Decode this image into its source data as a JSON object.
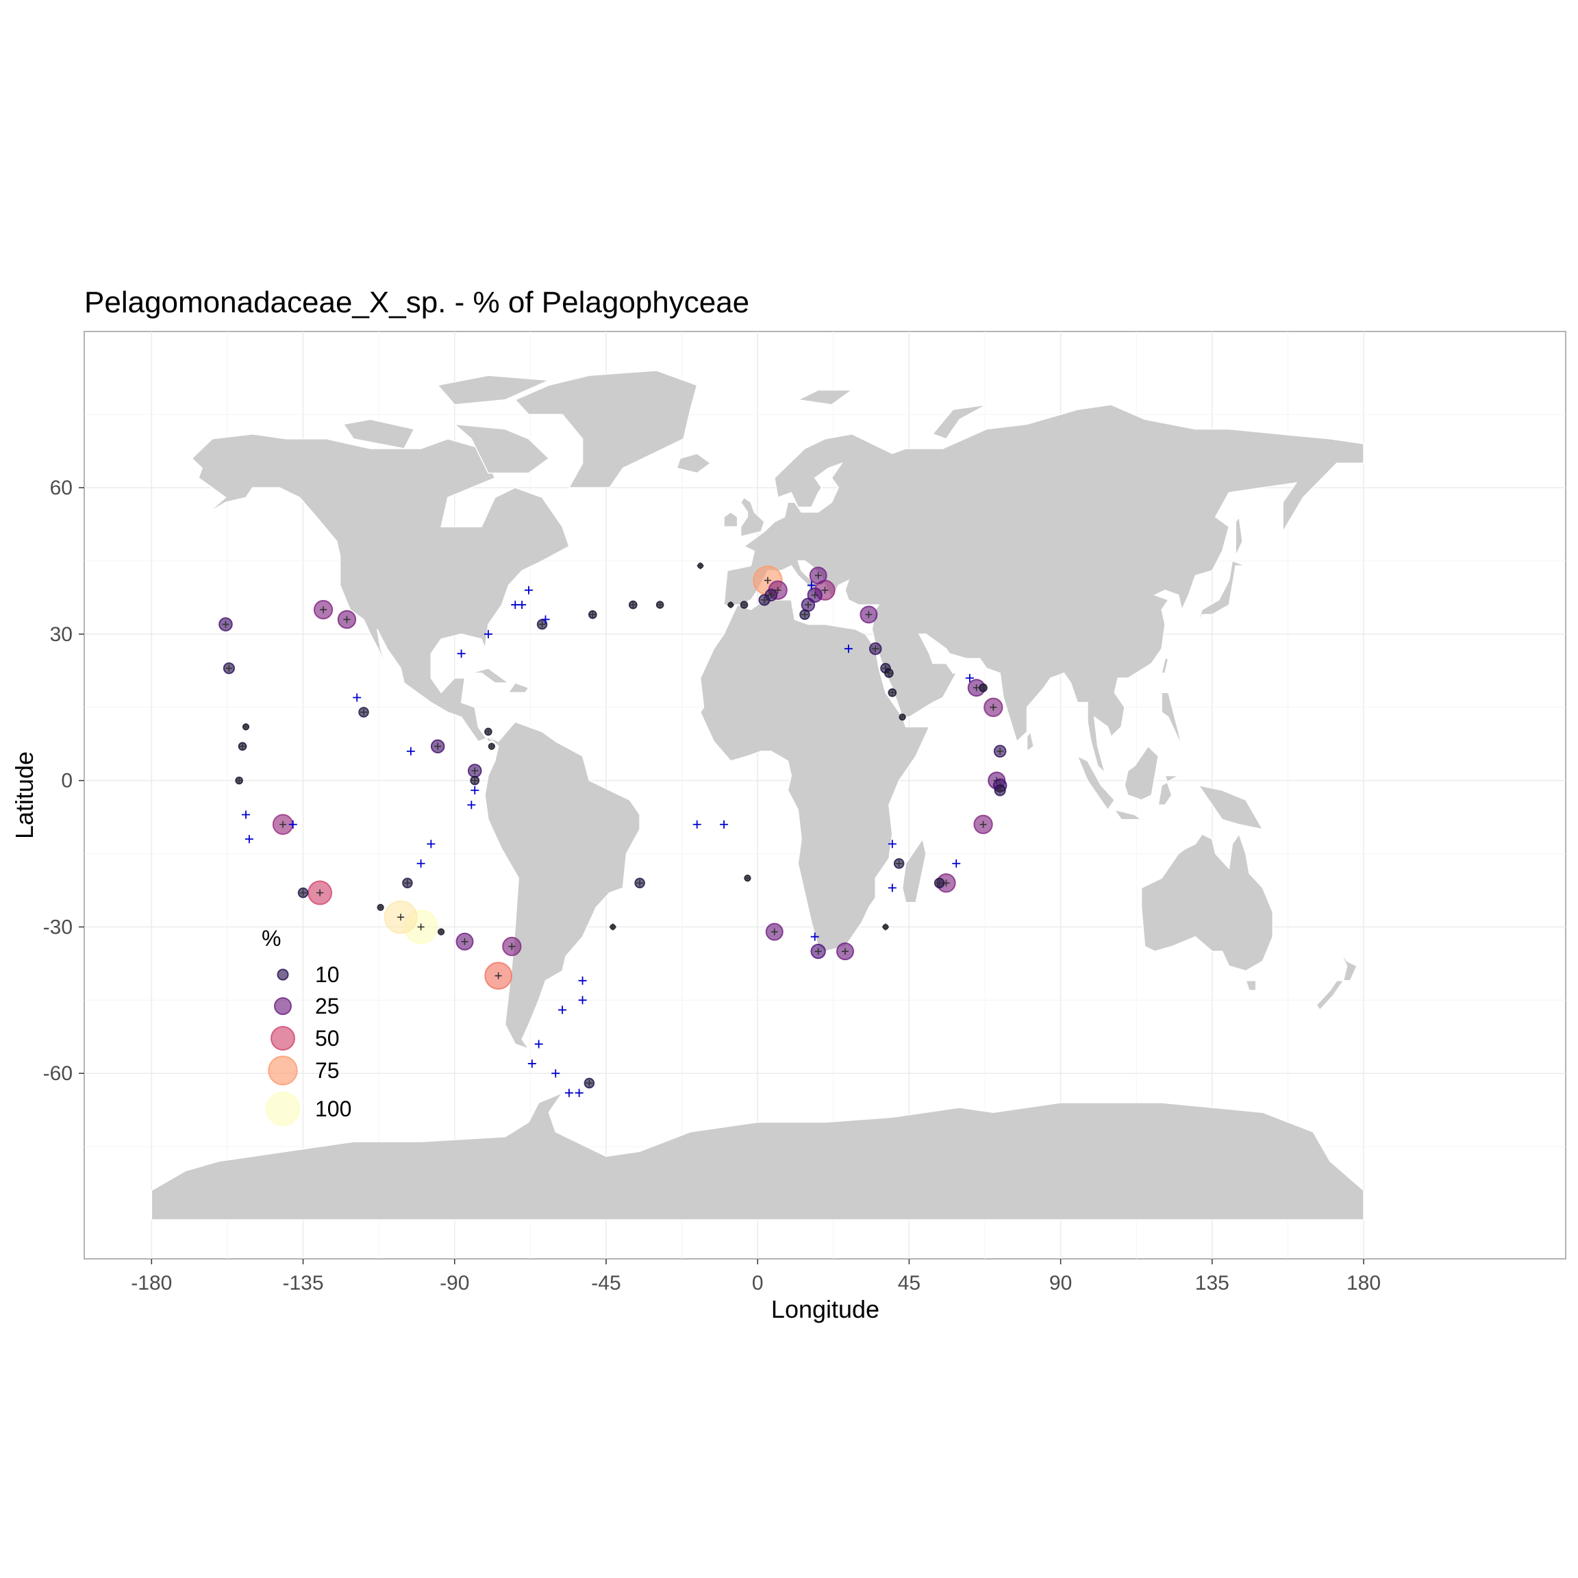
{
  "chart_data": {
    "type": "scatter",
    "title": "Pelagomonadaceae_X_sp. - % of Pelagophyceae",
    "xlabel": "Longitude",
    "ylabel": "Latitude",
    "xlim": [
      -200,
      240
    ],
    "ylim": [
      -98,
      92
    ],
    "x_ticks": [
      -180,
      -135,
      -90,
      -45,
      0,
      45,
      90,
      135,
      180
    ],
    "y_ticks": [
      60,
      30,
      0,
      -30,
      -60
    ],
    "x_tick_labels": [
      "-180",
      "-135",
      "-90",
      "-45",
      "0",
      "45",
      "90",
      "135",
      "180"
    ],
    "y_tick_labels": [
      "60",
      "30",
      "0",
      "-30",
      "-60"
    ],
    "grid": true,
    "size_scale_max": 100,
    "color_scale": "magma",
    "land_color": "#cccccc",
    "border_color": "#ffffff",
    "sample_marker_color": "#0000cc",
    "legend": {
      "title": "%",
      "placement": "bottom-left inside",
      "entries": [
        {
          "label": "10",
          "value": 10
        },
        {
          "label": "25",
          "value": 25
        },
        {
          "label": "50",
          "value": 50
        },
        {
          "label": "75",
          "value": 75
        },
        {
          "label": "100",
          "value": 100
        }
      ]
    },
    "points": [
      {
        "lon": 3,
        "lat": 41,
        "pct": 75
      },
      {
        "lon": 6,
        "lat": 39,
        "pct": 30
      },
      {
        "lon": 18,
        "lat": 42,
        "pct": 25
      },
      {
        "lon": 20,
        "lat": 39,
        "pct": 35
      },
      {
        "lon": 17,
        "lat": 38,
        "pct": 18
      },
      {
        "lon": 15,
        "lat": 36,
        "pct": 15
      },
      {
        "lon": 14,
        "lat": 34,
        "pct": 8
      },
      {
        "lon": 2,
        "lat": 37,
        "pct": 10
      },
      {
        "lon": 4,
        "lat": 38,
        "pct": 12
      },
      {
        "lon": 33,
        "lat": 34,
        "pct": 25
      },
      {
        "lon": 35,
        "lat": 27,
        "pct": 12
      },
      {
        "lon": 38,
        "lat": 23,
        "pct": 8
      },
      {
        "lon": 39,
        "lat": 22,
        "pct": 6
      },
      {
        "lon": 40,
        "lat": 18,
        "pct": 5
      },
      {
        "lon": 43,
        "lat": 13,
        "pct": 3
      },
      {
        "lon": 65,
        "lat": 19,
        "pct": 25
      },
      {
        "lon": 67,
        "lat": 19,
        "pct": 5
      },
      {
        "lon": 70,
        "lat": 15,
        "pct": 30
      },
      {
        "lon": 72,
        "lat": 6,
        "pct": 12
      },
      {
        "lon": 71,
        "lat": 0,
        "pct": 25
      },
      {
        "lon": 72,
        "lat": -1,
        "pct": 15
      },
      {
        "lon": 72,
        "lat": -2,
        "pct": 10
      },
      {
        "lon": 67,
        "lat": -9,
        "pct": 30
      },
      {
        "lon": 56,
        "lat": -21,
        "pct": 30
      },
      {
        "lon": 54,
        "lat": -21,
        "pct": 8
      },
      {
        "lon": 42,
        "lat": -17,
        "pct": 8
      },
      {
        "lon": 38,
        "lat": -30,
        "pct": 2
      },
      {
        "lon": 26,
        "lat": -35,
        "pct": 25
      },
      {
        "lon": 18,
        "lat": -35,
        "pct": 18
      },
      {
        "lon": 5,
        "lat": -31,
        "pct": 25
      },
      {
        "lon": -3,
        "lat": -20,
        "pct": 3
      },
      {
        "lon": -35,
        "lat": -21,
        "pct": 8
      },
      {
        "lon": -43,
        "lat": -30,
        "pct": 2
      },
      {
        "lon": -64,
        "lat": 32,
        "pct": 8
      },
      {
        "lon": -49,
        "lat": 34,
        "pct": 5
      },
      {
        "lon": -37,
        "lat": 36,
        "pct": 5
      },
      {
        "lon": -29,
        "lat": 36,
        "pct": 4
      },
      {
        "lon": -17,
        "lat": 44,
        "pct": 2
      },
      {
        "lon": -4,
        "lat": 36,
        "pct": 4
      },
      {
        "lon": -8,
        "lat": 36,
        "pct": 2
      },
      {
        "lon": -129,
        "lat": 35,
        "pct": 30
      },
      {
        "lon": -122,
        "lat": 33,
        "pct": 28
      },
      {
        "lon": -158,
        "lat": 32,
        "pct": 15
      },
      {
        "lon": -157,
        "lat": 23,
        "pct": 10
      },
      {
        "lon": -117,
        "lat": 14,
        "pct": 8
      },
      {
        "lon": -152,
        "lat": 11,
        "pct": 3
      },
      {
        "lon": -153,
        "lat": 7,
        "pct": 5
      },
      {
        "lon": -154,
        "lat": 0,
        "pct": 4
      },
      {
        "lon": -141,
        "lat": -9,
        "pct": 35
      },
      {
        "lon": -130,
        "lat": -23,
        "pct": 50
      },
      {
        "lon": -135,
        "lat": -23,
        "pct": 8
      },
      {
        "lon": -106,
        "lat": -28,
        "pct": 95
      },
      {
        "lon": -100,
        "lat": -30,
        "pct": 100
      },
      {
        "lon": -104,
        "lat": -21,
        "pct": 8
      },
      {
        "lon": -112,
        "lat": -26,
        "pct": 3
      },
      {
        "lon": -94,
        "lat": -31,
        "pct": 3
      },
      {
        "lon": -87,
        "lat": -33,
        "pct": 25
      },
      {
        "lon": -73,
        "lat": -34,
        "pct": 30
      },
      {
        "lon": -77,
        "lat": -40,
        "pct": 65
      },
      {
        "lon": -95,
        "lat": 7,
        "pct": 15
      },
      {
        "lon": -84,
        "lat": 2,
        "pct": 15
      },
      {
        "lon": -84,
        "lat": 0,
        "pct": 6
      },
      {
        "lon": -80,
        "lat": 10,
        "pct": 4
      },
      {
        "lon": -79,
        "lat": 7,
        "pct": 3
      },
      {
        "lon": -50,
        "lat": -62,
        "pct": 8
      }
    ],
    "samples": [
      {
        "lon": -63,
        "lat": 33
      },
      {
        "lon": -70,
        "lat": 36
      },
      {
        "lon": -72,
        "lat": 36
      },
      {
        "lon": -68,
        "lat": 39
      },
      {
        "lon": -80,
        "lat": 30
      },
      {
        "lon": -88,
        "lat": 26
      },
      {
        "lon": -119,
        "lat": 17
      },
      {
        "lon": -103,
        "lat": 6
      },
      {
        "lon": -152,
        "lat": -7
      },
      {
        "lon": -151,
        "lat": -12
      },
      {
        "lon": -138,
        "lat": -9
      },
      {
        "lon": -97,
        "lat": -13
      },
      {
        "lon": -100,
        "lat": -17
      },
      {
        "lon": -85,
        "lat": -5
      },
      {
        "lon": -84,
        "lat": -2
      },
      {
        "lon": -52,
        "lat": -41
      },
      {
        "lon": -52,
        "lat": -45
      },
      {
        "lon": -58,
        "lat": -47
      },
      {
        "lon": -65,
        "lat": -54
      },
      {
        "lon": -67,
        "lat": -58
      },
      {
        "lon": -60,
        "lat": -60
      },
      {
        "lon": -56,
        "lat": -64
      },
      {
        "lon": -53,
        "lat": -64
      },
      {
        "lon": -18,
        "lat": -9
      },
      {
        "lon": -10,
        "lat": -9
      },
      {
        "lon": 17,
        "lat": -32
      },
      {
        "lon": 40,
        "lat": -13
      },
      {
        "lon": 59,
        "lat": -17
      },
      {
        "lon": 40,
        "lat": -22
      },
      {
        "lon": 63,
        "lat": 21
      },
      {
        "lon": 27,
        "lat": 27
      },
      {
        "lon": 16,
        "lat": 40
      }
    ]
  }
}
